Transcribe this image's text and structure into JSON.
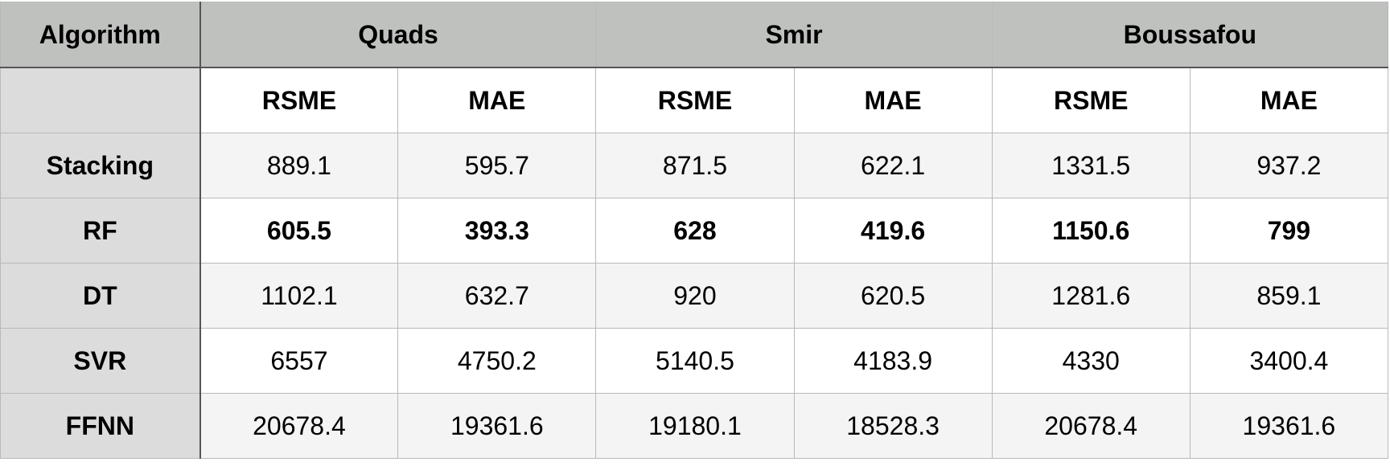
{
  "chart_data": {
    "type": "table",
    "header": {
      "algorithm_label": "Algorithm",
      "groups": [
        "Quads",
        "Smir",
        "Boussafou"
      ],
      "metrics": [
        "RSME",
        "MAE",
        "RSME",
        "MAE",
        "RSME",
        "MAE"
      ]
    },
    "rows": [
      {
        "label": "Stacking",
        "values": [
          "889.1",
          "595.7",
          "871.5",
          "622.1",
          "1331.5",
          "937.2"
        ]
      },
      {
        "label": "RF",
        "values": [
          "605.5",
          "393.3",
          "628",
          "419.6",
          "1150.6",
          "799"
        ],
        "bold": true
      },
      {
        "label": "DT",
        "values": [
          "1102.1",
          "632.7",
          "920",
          "620.5",
          "1281.6",
          "859.1"
        ]
      },
      {
        "label": "SVR",
        "values": [
          "6557",
          "4750.2",
          "5140.5",
          "4183.9",
          "4330",
          "3400.4"
        ]
      },
      {
        "label": "FFNN",
        "values": [
          "20678.4",
          "19361.6",
          "19180.1",
          "18528.3",
          "20678.4",
          "19361.6"
        ]
      }
    ]
  }
}
